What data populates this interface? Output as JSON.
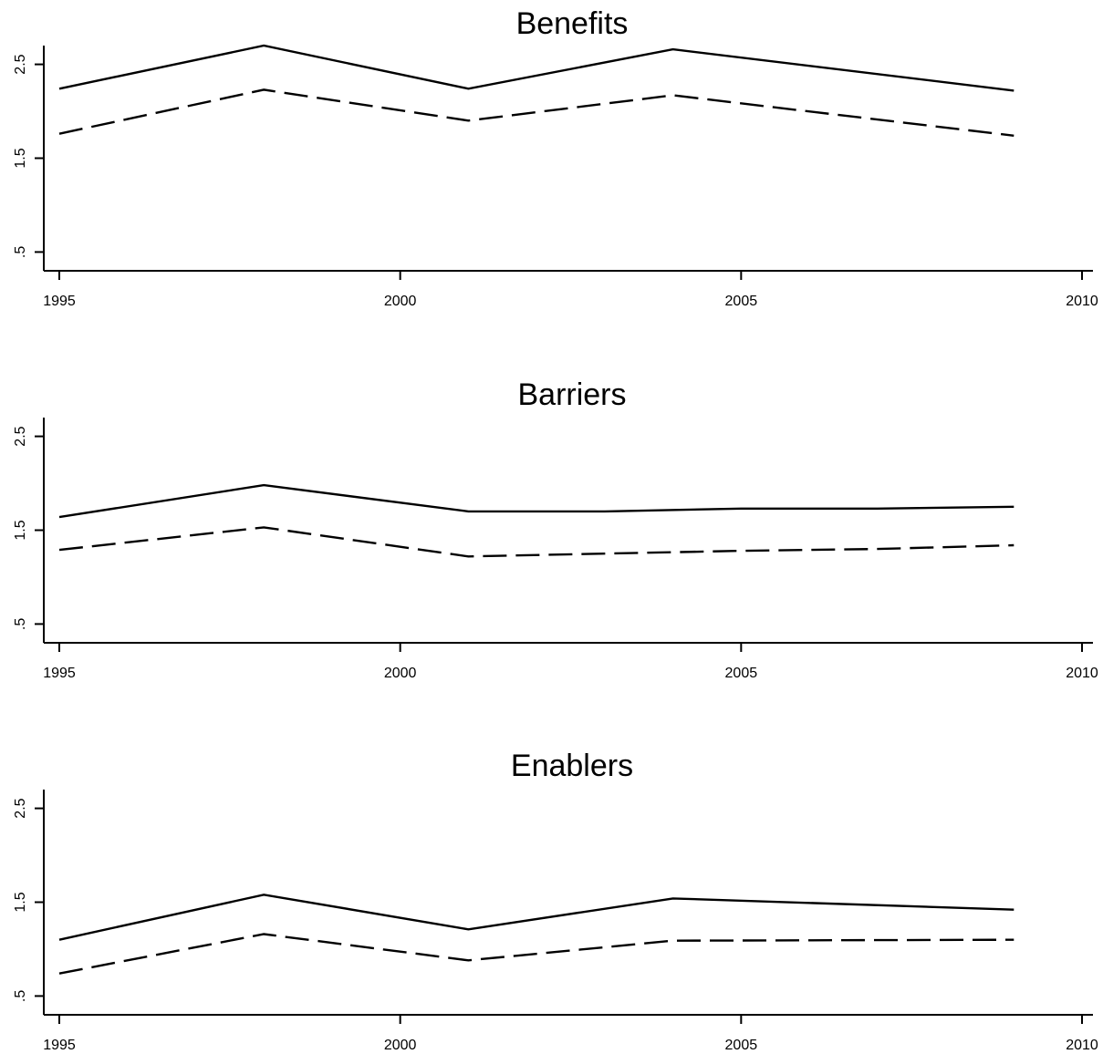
{
  "chart_data": [
    {
      "type": "line",
      "title": "Benefits",
      "xlabel": "",
      "ylabel": "",
      "x": [
        1995,
        1998,
        2001,
        2004,
        2009
      ],
      "xlim": [
        1995,
        2010
      ],
      "ylim": [
        0.3,
        2.7
      ],
      "x_ticks": [
        1995,
        2000,
        2005,
        2010
      ],
      "x_tick_labels": [
        "1995",
        "2000",
        "2005",
        "2010"
      ],
      "y_ticks": [
        0.5,
        1.5,
        2.5
      ],
      "y_tick_labels": [
        ".5",
        "1.5",
        "2.5"
      ],
      "grid": false,
      "series": [
        {
          "style": "solid",
          "values": [
            2.24,
            2.7,
            2.24,
            2.66,
            2.22
          ]
        },
        {
          "style": "dashed",
          "values": [
            1.76,
            2.23,
            1.9,
            2.17,
            1.74
          ]
        }
      ]
    },
    {
      "type": "line",
      "title": "Barriers",
      "xlabel": "",
      "ylabel": "",
      "x": [
        1995,
        1998,
        2001,
        2003,
        2005,
        2007,
        2009
      ],
      "xlim": [
        1995,
        2010
      ],
      "ylim": [
        0.3,
        2.7
      ],
      "x_ticks": [
        1995,
        2000,
        2005,
        2010
      ],
      "x_tick_labels": [
        "1995",
        "2000",
        "2005",
        "2010"
      ],
      "y_ticks": [
        0.5,
        1.5,
        2.5
      ],
      "y_tick_labels": [
        ".5",
        "1.5",
        "2.5"
      ],
      "grid": false,
      "series": [
        {
          "style": "solid",
          "values": [
            1.64,
            1.98,
            1.7,
            1.7,
            1.73,
            1.73,
            1.75
          ]
        },
        {
          "style": "dashed",
          "values": [
            1.29,
            1.53,
            1.22,
            1.25,
            1.28,
            1.3,
            1.34
          ]
        }
      ]
    },
    {
      "type": "line",
      "title": "Enablers",
      "xlabel": "",
      "ylabel": "",
      "x": [
        1995,
        1998,
        2001,
        2004,
        2009
      ],
      "xlim": [
        1995,
        2010
      ],
      "ylim": [
        0.3,
        2.7
      ],
      "x_ticks": [
        1995,
        2000,
        2005,
        2010
      ],
      "x_tick_labels": [
        "1995",
        "2000",
        "2005",
        "2010"
      ],
      "y_ticks": [
        0.5,
        1.5,
        2.5
      ],
      "y_tick_labels": [
        ".5",
        "1.5",
        "2.5"
      ],
      "grid": false,
      "series": [
        {
          "style": "solid",
          "values": [
            1.1,
            1.58,
            1.21,
            1.54,
            1.42
          ]
        },
        {
          "style": "dashed",
          "values": [
            0.74,
            1.16,
            0.88,
            1.09,
            1.1
          ]
        }
      ]
    }
  ]
}
